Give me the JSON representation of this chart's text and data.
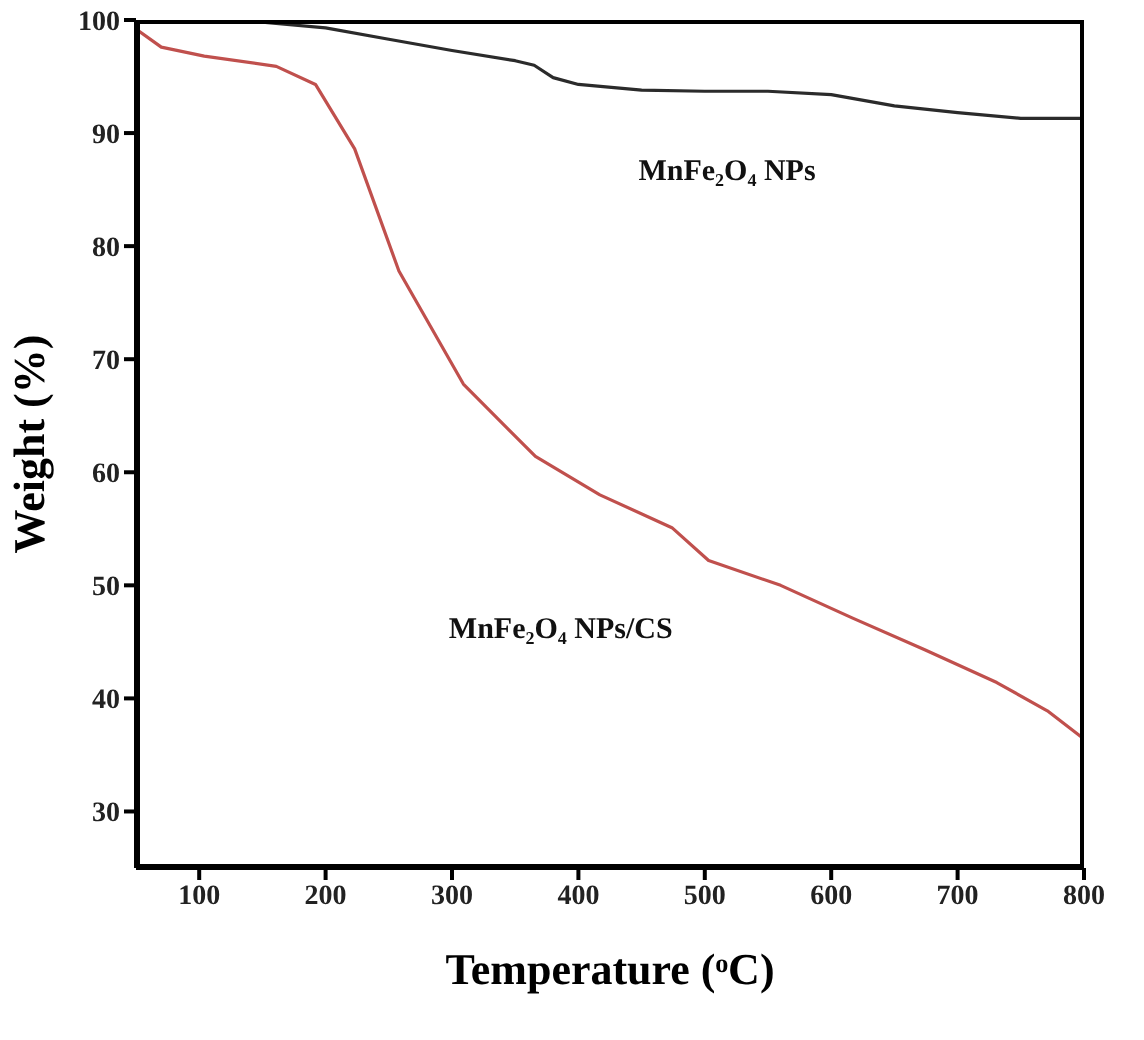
{
  "chart_data": {
    "type": "line",
    "xlabel": "Temperature (ᵒC)",
    "ylabel": "Weight (%)",
    "xlim": [
      50,
      800
    ],
    "ylim": [
      25,
      100
    ],
    "xticks": [
      100,
      200,
      300,
      400,
      500,
      600,
      700,
      800
    ],
    "yticks": [
      30,
      40,
      50,
      60,
      70,
      80,
      90,
      100
    ],
    "grid": false,
    "legend": false,
    "marker": "none",
    "line_style": "solid",
    "series": [
      {
        "color": "#2b2b2b",
        "x": [
          50,
          100,
          150,
          200,
          250,
          300,
          350,
          365,
          380,
          400,
          450,
          500,
          550,
          600,
          650,
          700,
          750,
          800
        ],
        "values": [
          100,
          100,
          99.8,
          99.3,
          98.3,
          97.3,
          96.4,
          96,
          94.9,
          94.3,
          93.8,
          93.7,
          93.7,
          93.4,
          92.4,
          91.8,
          91.3,
          91.3
        ]
      },
      {
        "color": "#c0504d",
        "x": [
          50,
          70,
          104,
          161,
          192,
          223,
          258,
          309,
          366,
          417,
          474,
          503,
          560,
          617,
          674,
          731,
          771,
          800
        ],
        "values": [
          99.2,
          97.6,
          96.8,
          95.9,
          94.3,
          88.6,
          77.8,
          67.8,
          61.4,
          58,
          55.1,
          52.2,
          50,
          47.1,
          44.3,
          41.4,
          38.9,
          36.4
        ]
      }
    ],
    "annotations": [
      "MnFe₂O₄ NPs",
      "MnFe₂O₄ NPs/CS"
    ]
  }
}
